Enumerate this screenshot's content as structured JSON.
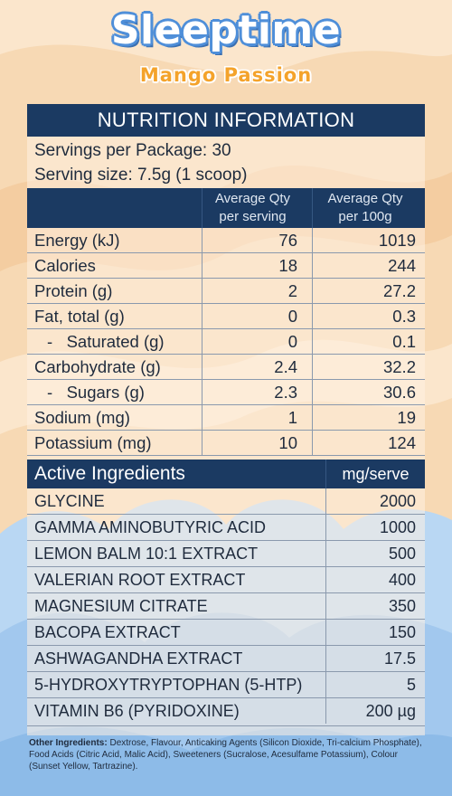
{
  "brand": {
    "title": "Sleeptime",
    "flavour": "Mango Passion"
  },
  "panel": {
    "title": "NUTRITION INFORMATION",
    "servings_per_package": "Servings per Package: 30",
    "serving_size": "Serving size: 7.5g (1 scoop)"
  },
  "nutrition": {
    "col1_line1": "Average Qty",
    "col1_line2": "per serving",
    "col2_line1": "Average Qty",
    "col2_line2": "per 100g",
    "rows": [
      {
        "label": "Energy (kJ)",
        "per_serving": "76",
        "per_100g": "1019"
      },
      {
        "label": "Calories",
        "per_serving": "18",
        "per_100g": "244"
      },
      {
        "label": "Protein (g)",
        "per_serving": "2",
        "per_100g": "27.2"
      },
      {
        "label": "Fat, total (g)",
        "per_serving": "0",
        "per_100g": "0.3"
      },
      {
        "label": "-   Saturated (g)",
        "per_serving": "0",
        "per_100g": "0.1"
      },
      {
        "label": "Carbohydrate (g)",
        "per_serving": "2.4",
        "per_100g": "32.2"
      },
      {
        "label": "-   Sugars (g)",
        "per_serving": "2.3",
        "per_100g": "30.6"
      },
      {
        "label": "Sodium (mg)",
        "per_serving": "1",
        "per_100g": "19"
      },
      {
        "label": "Potassium (mg)",
        "per_serving": "10",
        "per_100g": "124"
      }
    ]
  },
  "actives": {
    "title": "Active Ingredients",
    "unit_header": "mg/serve",
    "rows": [
      {
        "name": "GLYCINE",
        "amount": "2000"
      },
      {
        "name": "GAMMA AMINOBUTYRIC ACID",
        "amount": "1000"
      },
      {
        "name": "LEMON BALM 10:1 EXTRACT",
        "amount": "500"
      },
      {
        "name": "VALERIAN ROOT EXTRACT",
        "amount": "400"
      },
      {
        "name": "MAGNESIUM CITRATE",
        "amount": "350"
      },
      {
        "name": "BACOPA EXTRACT",
        "amount": "150"
      },
      {
        "name": "ASHWAGANDHA EXTRACT",
        "amount": "17.5"
      },
      {
        "name": "5-HYDROXYTRYPTOPHAN (5-HTP)",
        "amount": "5"
      },
      {
        "name": "VITAMIN B6 (PYRIDOXINE)",
        "amount": "200 µg"
      }
    ]
  },
  "other_ingredients": {
    "label": "Other Ingredients:",
    "text": " Dextrose, Flavour, Anticaking Agents (Silicon Dioxide, Tri-calcium Phosphate), Food Acids (Citric Acid, Malic Acid), Sweeteners (Sucralose, Acesulfame Potassium), Colour (Sunset Yellow, Tartrazine)."
  },
  "colors": {
    "header_navy": "#1b3a62",
    "peach_bg": "#f7d9b4",
    "cloud_blue": "#a9cdf0",
    "title_blue": "#4f8fd9",
    "flavour_orange": "#f4a32b"
  }
}
